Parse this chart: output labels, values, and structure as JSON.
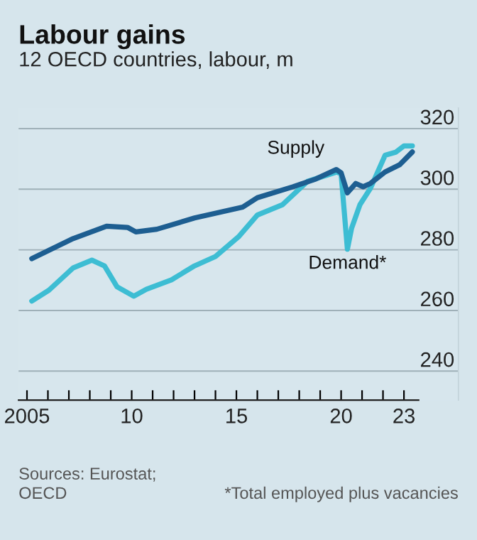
{
  "chart_data": {
    "type": "line",
    "title": "Labour gains",
    "subtitle": "12 OECD countries, labour, m",
    "annotations": [
      "Sources: Eurostat;\nOECD",
      "*Total employed plus vacancies"
    ],
    "xlim": [
      2004.6,
      2025.6
    ],
    "xticks": [
      2005,
      {
        "value": 2006,
        "label": null
      },
      {
        "value": 2007,
        "label": null
      },
      {
        "value": 2008,
        "label": null
      },
      {
        "value": 2009,
        "label": null
      },
      {
        "value": 2010,
        "label": "10"
      },
      {
        "value": 2011,
        "label": null
      },
      {
        "value": 2012,
        "label": null
      },
      {
        "value": 2013,
        "label": null
      },
      {
        "value": 2014,
        "label": null
      },
      {
        "value": 2015,
        "label": "15"
      },
      {
        "value": 2016,
        "label": null
      },
      {
        "value": 2017,
        "label": null
      },
      {
        "value": 2018,
        "label": null
      },
      {
        "value": 2019,
        "label": null
      },
      {
        "value": 2020,
        "label": "20"
      },
      {
        "value": 2021,
        "label": null
      },
      {
        "value": 2022,
        "label": null
      },
      {
        "value": 2023,
        "label": "23"
      }
    ],
    "ylim": [
      230.4,
      326.8
    ],
    "yticks": [
      240,
      260,
      280,
      300,
      320
    ],
    "grid": "y",
    "legend": false,
    "line_style": "solid",
    "marker": "none",
    "series": [
      {
        "name": "Supply",
        "color": "#1d5e91",
        "x": [
          2005.23,
          2007.2,
          2008.8,
          2009.8,
          2010.2,
          2011.2,
          2013.0,
          2015.3,
          2016.0,
          2017.7,
          2018.8,
          2019.77,
          2020.0,
          2020.3,
          2020.7,
          2021.05,
          2021.4,
          2022.1,
          2022.8,
          2023.4
        ],
        "values": [
          277.1,
          283.7,
          287.8,
          287.4,
          285.9,
          286.8,
          290.5,
          294.1,
          297.2,
          300.8,
          303.4,
          306.5,
          305.4,
          298.8,
          301.9,
          300.8,
          301.9,
          305.7,
          308.1,
          312.3
        ]
      },
      {
        "name": "Demand*",
        "color": "#3dbdd3",
        "x": [
          2005.23,
          2006.05,
          2007.2,
          2008.1,
          2008.7,
          2009.3,
          2010.1,
          2010.7,
          2011.9,
          2013.0,
          2014.0,
          2015.1,
          2016.0,
          2017.2,
          2018.4,
          2019.8,
          2020.0,
          2020.3,
          2020.5,
          2020.9,
          2021.4,
          2022.1,
          2022.6,
          2023.0,
          2023.4
        ],
        "values": [
          263.1,
          266.7,
          274.0,
          276.6,
          274.7,
          267.8,
          264.7,
          267.0,
          270.1,
          274.7,
          277.8,
          284.3,
          291.5,
          294.9,
          302.6,
          305.7,
          305.0,
          280.2,
          287.1,
          294.9,
          300.3,
          311.2,
          312.2,
          314.3,
          314.3
        ]
      }
    ]
  }
}
